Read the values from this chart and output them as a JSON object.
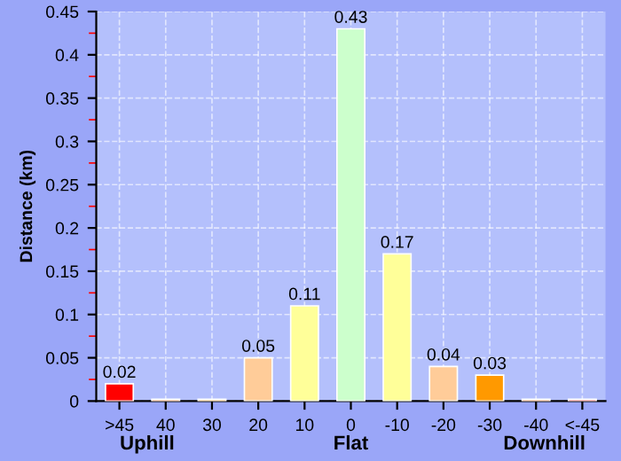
{
  "chart_data": {
    "type": "bar",
    "ylabel": "Distance (km)",
    "categories": [
      ">45",
      "40",
      "30",
      "20",
      "10",
      "0",
      "-10",
      "-20",
      "-30",
      "-40",
      "<-45"
    ],
    "values": [
      0.02,
      0.002,
      0.002,
      0.05,
      0.11,
      0.43,
      0.17,
      0.04,
      0.03,
      0.002,
      0.002
    ],
    "value_labels": [
      "0.02",
      null,
      null,
      "0.05",
      "0.11",
      "0.43",
      "0.17",
      "0.04",
      "0.03",
      null,
      null
    ],
    "colors": [
      "#ff0000",
      "#ff6600",
      "#ff9900",
      "#ffcc99",
      "#ffff99",
      "#ccffcc",
      "#ffff99",
      "#ffcc99",
      "#ff9900",
      "#ff6600",
      "#ff0000"
    ],
    "ylim": [
      0,
      0.45
    ],
    "yticks": [
      0,
      0.05,
      0.1,
      0.15,
      0.2,
      0.25,
      0.3,
      0.35,
      0.4,
      0.45
    ],
    "grid": true,
    "annotations": [
      "Uphill",
      "Flat",
      "Downhill"
    ]
  }
}
